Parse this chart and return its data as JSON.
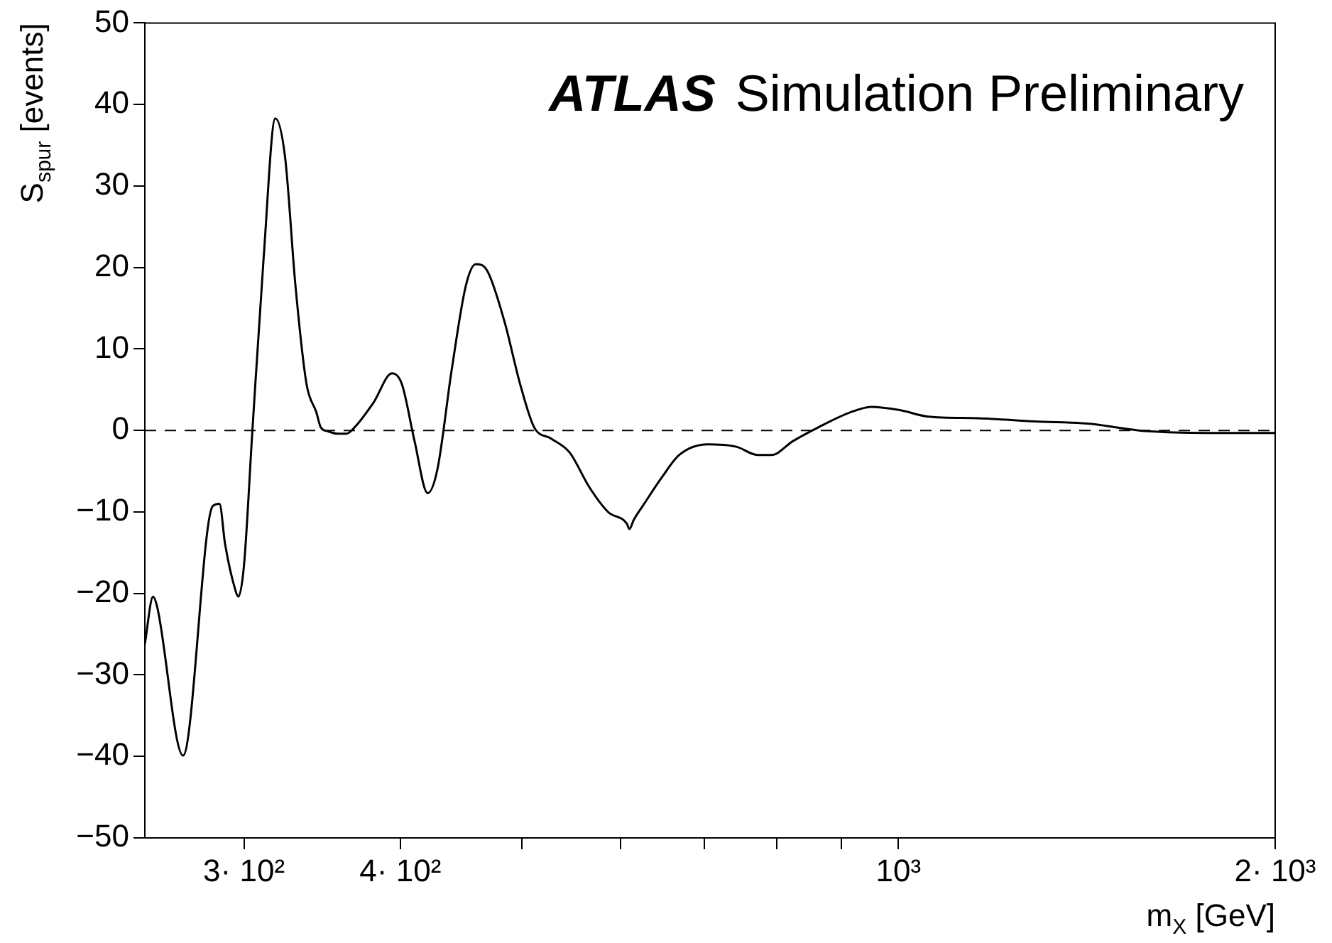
{
  "chart_data": {
    "type": "line",
    "xlabel": "m$_{X}$ [GeV]",
    "ylabel": "S$_{spur}$ [events]",
    "annotations": [
      "ATLAS",
      "Simulation Preliminary"
    ],
    "log": "x",
    "grid": false,
    "legend": false,
    "marker": "none",
    "line_style": "solid",
    "xlim": [
      250,
      2000
    ],
    "ylim": [
      -50,
      50
    ],
    "xticks": [
      {
        "value": 300,
        "label": "3· 10²"
      },
      {
        "value": 400,
        "label": "4· 10²"
      },
      {
        "value": 500,
        "label": null
      },
      {
        "value": 600,
        "label": null
      },
      {
        "value": 700,
        "label": null
      },
      {
        "value": 800,
        "label": null
      },
      {
        "value": 900,
        "label": null
      },
      {
        "value": 1000,
        "label": "10³"
      },
      {
        "value": 2000,
        "label": "2· 10³"
      }
    ],
    "yticks": [
      -50,
      -40,
      -30,
      -20,
      -10,
      0,
      10,
      20,
      30,
      40,
      50
    ],
    "ref_lines": [
      {
        "axis": "y",
        "value": 0,
        "line_style": "dashed",
        "color": "#000000"
      }
    ],
    "series": [
      {
        "color": "#000000",
        "x": [
          250,
          253.8,
          255.7,
          268.2,
          283.2,
          286.8,
          289.8,
          295.3,
          296.9,
          300,
          304.7,
          311.1,
          317.8,
          323.6,
          329.8,
          336.6,
          342.8,
          345.5,
          350.1,
          356.6,
          362.2,
          367.8,
          380.7,
          393.9,
          401.1,
          410.6,
          420.6,
          428.2,
          439.6,
          451.3,
          459.6,
          469.3,
          484.2,
          498.6,
          511.6,
          528,
          546.1,
          566.5,
          586.2,
          606.6,
          609.7,
          614.4,
          625.8,
          647.5,
          668.2,
          704.1,
          742.2,
          771.6,
          791.9,
          823.8,
          863.5,
          914.7,
          951.3,
          1002.6,
          1056.6,
          1157,
          1285,
          1427,
          1504,
          1585,
          1760,
          2000
        ],
        "values": [
          -26.2,
          -20.4,
          -21.6,
          -39.9,
          -9.3,
          -9,
          -14,
          -19.6,
          -20.4,
          -16.6,
          0,
          21.3,
          38.3,
          33.5,
          17.8,
          5.7,
          2.2,
          0.4,
          -0.1,
          -0.4,
          -0.4,
          0.4,
          3.4,
          7,
          5.7,
          -1.3,
          -7.7,
          -4.8,
          7.4,
          17.8,
          20.4,
          19.6,
          13.5,
          5.7,
          0.4,
          -1,
          -2.7,
          -7,
          -10,
          -11.4,
          -12.1,
          -11,
          -9.1,
          -5.7,
          -3,
          -1.7,
          -2,
          -3,
          -3,
          -1.3,
          0.4,
          2.2,
          2.9,
          2.5,
          1.7,
          1.5,
          1.1,
          0.8,
          0.3,
          -0.1,
          -0.3,
          -0.3
        ]
      }
    ]
  }
}
